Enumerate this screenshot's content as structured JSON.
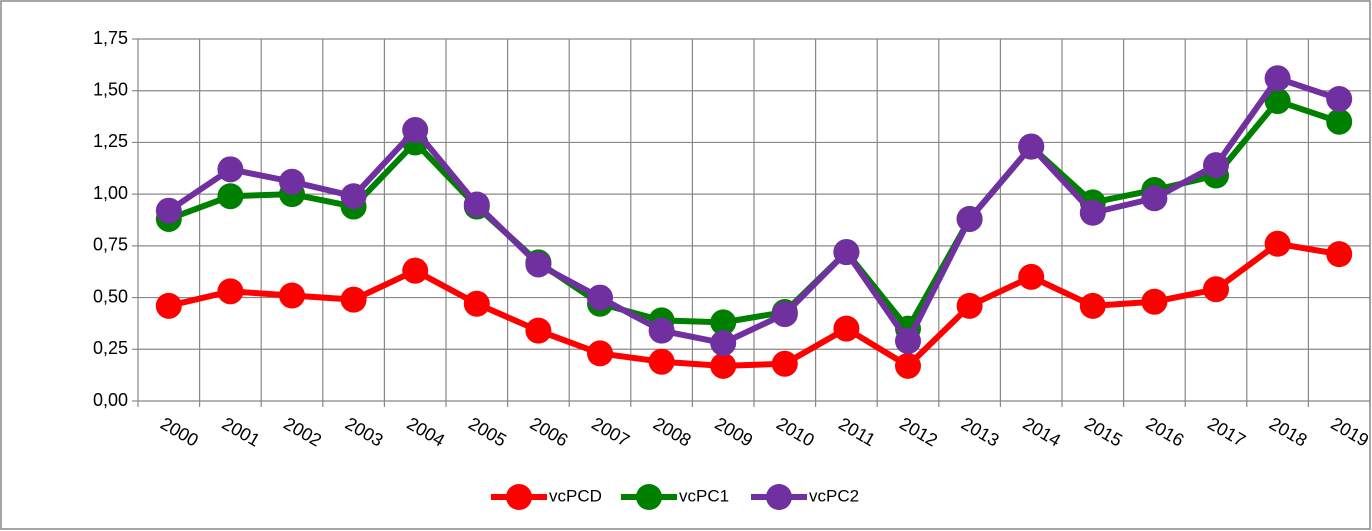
{
  "chart_data": {
    "type": "line",
    "categories": [
      "2000",
      "2001",
      "2002",
      "2003",
      "2004",
      "2005",
      "2006",
      "2007",
      "2008",
      "2009",
      "2010",
      "2011",
      "2012",
      "2013",
      "2014",
      "2015",
      "2016",
      "2017",
      "2018",
      "2019"
    ],
    "series": [
      {
        "name": "vcPCD",
        "color": "#ff0000",
        "values": [
          0.46,
          0.53,
          0.51,
          0.49,
          0.63,
          0.47,
          0.34,
          0.23,
          0.19,
          0.17,
          0.18,
          0.35,
          0.17,
          0.46,
          0.6,
          0.46,
          0.48,
          0.54,
          0.76,
          0.71
        ]
      },
      {
        "name": "vcPC1",
        "color": "#008000",
        "values": [
          0.88,
          0.99,
          1.0,
          0.94,
          1.25,
          0.94,
          0.67,
          0.47,
          0.39,
          0.38,
          0.43,
          0.72,
          0.35,
          0.88,
          1.23,
          0.96,
          1.02,
          1.09,
          1.45,
          1.35
        ]
      },
      {
        "name": "vcPC2",
        "color": "#7030a0",
        "values": [
          0.92,
          1.12,
          1.06,
          0.99,
          1.31,
          0.95,
          0.66,
          0.5,
          0.34,
          0.28,
          0.42,
          0.72,
          0.29,
          0.88,
          1.23,
          0.91,
          0.98,
          1.14,
          1.56,
          1.46
        ]
      }
    ],
    "ylim": [
      0,
      1.75
    ],
    "yticks": [
      {
        "value": 0,
        "label": "0,00"
      },
      {
        "value": 0.25,
        "label": "0,25"
      },
      {
        "value": 0.5,
        "label": "0,50"
      },
      {
        "value": 0.75,
        "label": "0,75"
      },
      {
        "value": 1,
        "label": "1,00"
      },
      {
        "value": 1.25,
        "label": "1,25"
      },
      {
        "value": 1.5,
        "label": "1,50"
      },
      {
        "value": 1.75,
        "label": "1,75"
      }
    ],
    "grid": true,
    "legend": "bottom"
  }
}
